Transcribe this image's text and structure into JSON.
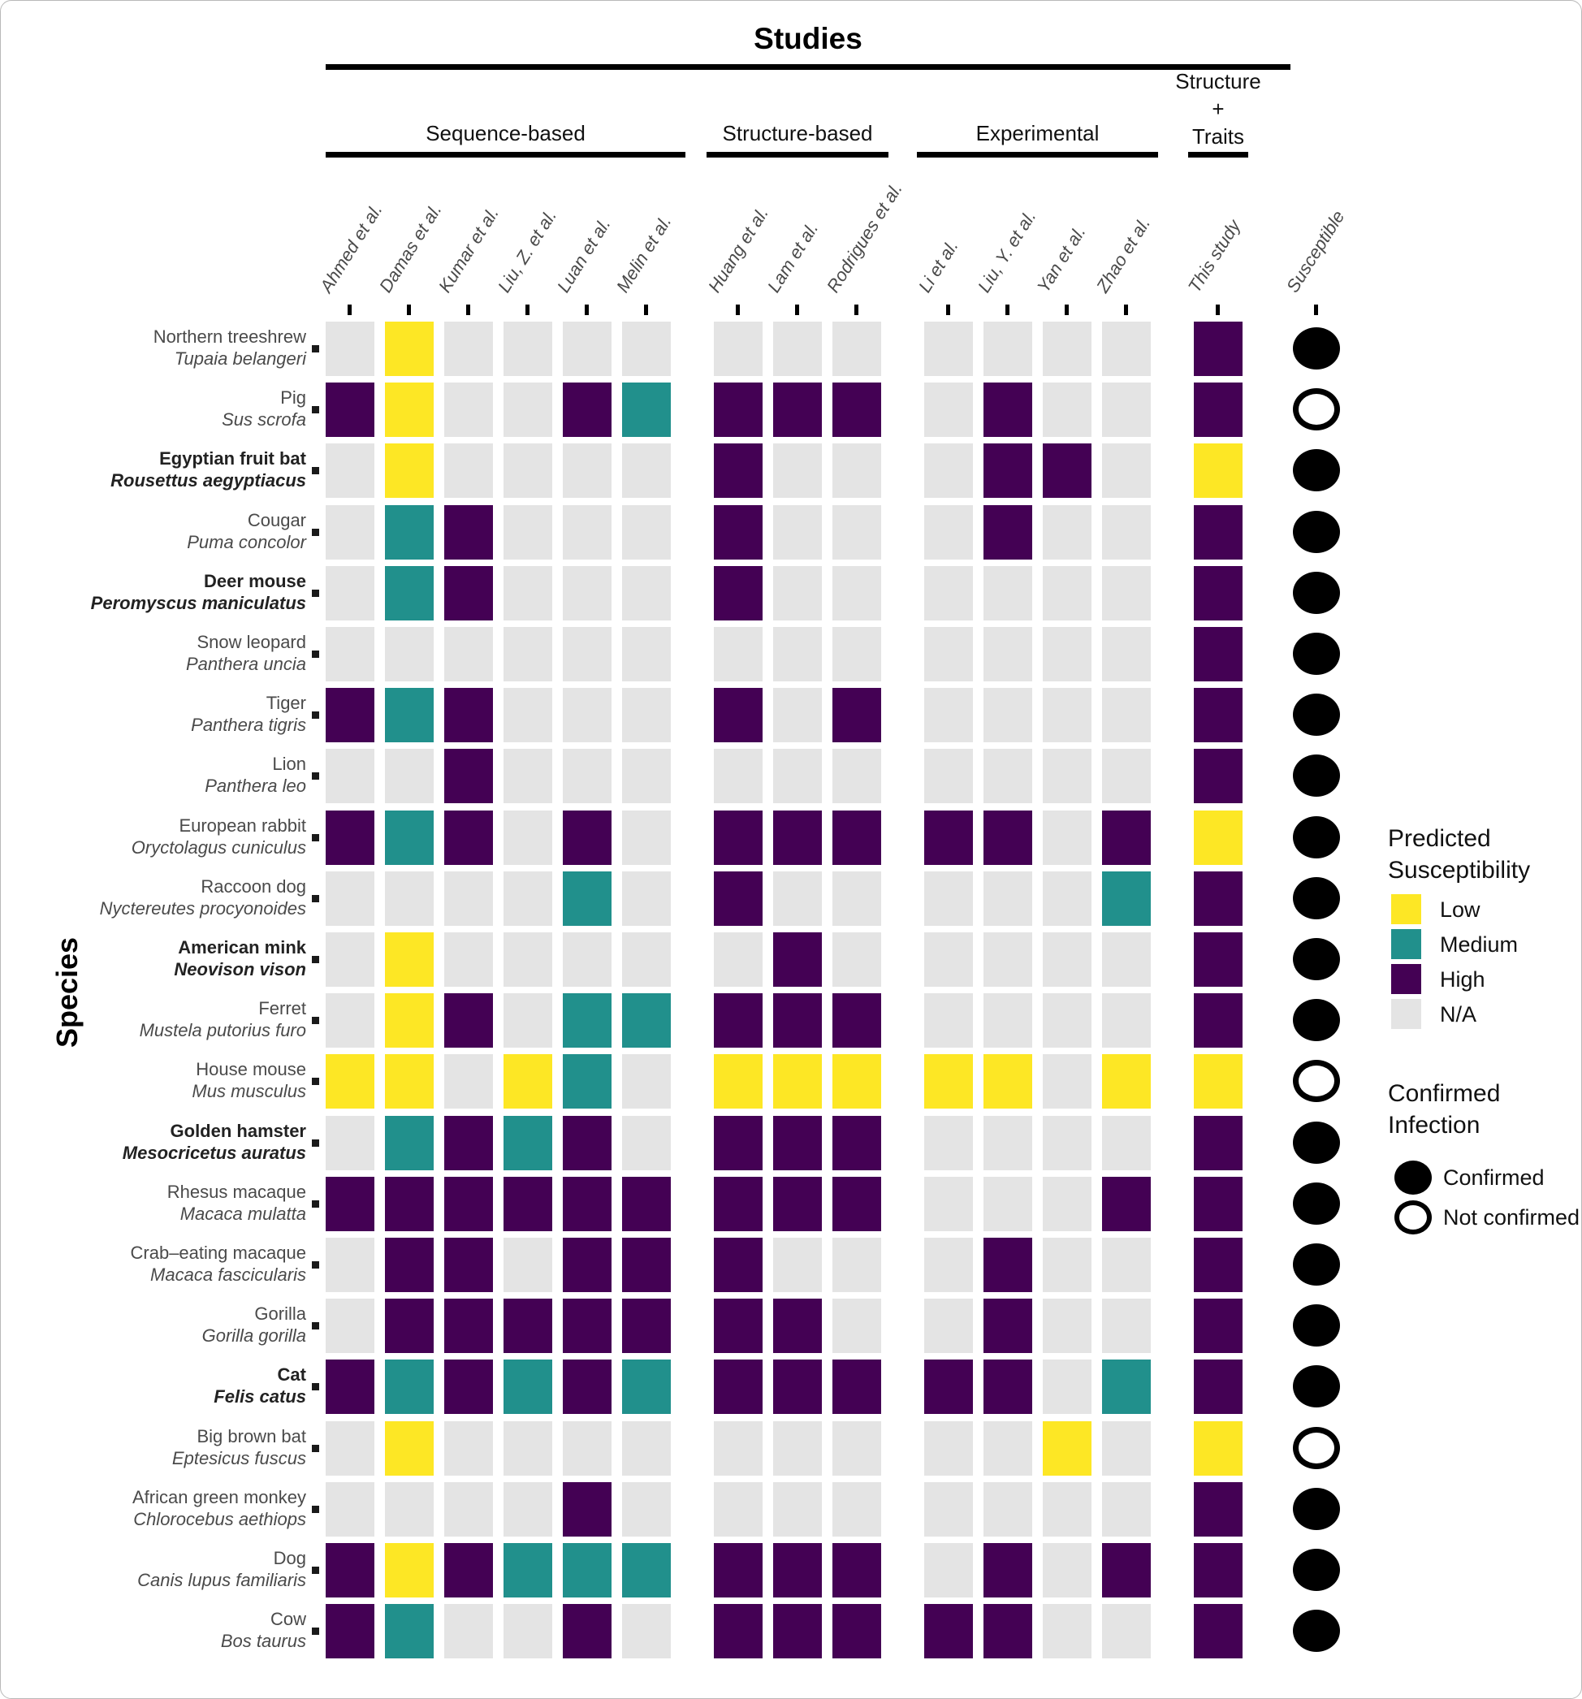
{
  "title": "Studies",
  "y_axis_label": "Species",
  "susceptible_column_label": "Susceptible",
  "colors": {
    "low": "#FDE725",
    "medium": "#21908C",
    "high": "#440154",
    "na": "#E4E4E4",
    "tick": "#000000"
  },
  "column_groups": [
    {
      "label": "Sequence-based",
      "columns": [
        "Ahmed et al.",
        "Damas et al.",
        "Kumar et al.",
        "Liu, Z. et al.",
        "Luan et al.",
        "Melin et al."
      ]
    },
    {
      "label": "Structure-based",
      "columns": [
        "Huang et al.",
        "Lam et al.",
        "Rodrigues et al."
      ]
    },
    {
      "label": "Experimental",
      "columns": [
        "Li et al.",
        "Liu, Y. et al.",
        "Yan et al.",
        "Zhao et al."
      ]
    },
    {
      "label": "Structure + Traits",
      "label_lines": [
        "Structure",
        "+",
        "Traits"
      ],
      "columns": [
        "This study"
      ]
    }
  ],
  "legend": {
    "predicted": {
      "title_line1": "Predicted",
      "title_line2": "Susceptibility",
      "items": [
        {
          "key": "low",
          "label": "Low"
        },
        {
          "key": "medium",
          "label": "Medium"
        },
        {
          "key": "high",
          "label": "High"
        },
        {
          "key": "na",
          "label": "N/A"
        }
      ]
    },
    "confirmed": {
      "title_line1": "Confirmed",
      "title_line2": "Infection",
      "items": [
        {
          "style": "filled",
          "label": "Confirmed"
        },
        {
          "style": "open",
          "label": "Not confirmed"
        }
      ]
    }
  },
  "chart_data": {
    "type": "heatmap",
    "value_codes": {
      "L": "Low",
      "M": "Medium",
      "H": "High",
      "N": "N/A"
    },
    "columns": [
      "Ahmed et al.",
      "Damas et al.",
      "Kumar et al.",
      "Liu, Z. et al.",
      "Luan et al.",
      "Melin et al.",
      "Huang et al.",
      "Lam et al.",
      "Rodrigues et al.",
      "Li et al.",
      "Liu, Y. et al.",
      "Yan et al.",
      "Zhao et al.",
      "This study"
    ],
    "rows": [
      {
        "common": "Northern treeshrew",
        "scientific": "Tupaia belangeri",
        "bold": false,
        "values": [
          "N",
          "L",
          "N",
          "N",
          "N",
          "N",
          "N",
          "N",
          "N",
          "N",
          "N",
          "N",
          "N",
          "H"
        ],
        "confirmed": true
      },
      {
        "common": "Pig",
        "scientific": "Sus scrofa",
        "bold": false,
        "values": [
          "H",
          "L",
          "N",
          "N",
          "H",
          "M",
          "H",
          "H",
          "H",
          "N",
          "H",
          "N",
          "N",
          "H"
        ],
        "confirmed": false
      },
      {
        "common": "Egyptian fruit bat",
        "scientific": "Rousettus aegyptiacus",
        "bold": true,
        "values": [
          "N",
          "L",
          "N",
          "N",
          "N",
          "N",
          "H",
          "N",
          "N",
          "N",
          "H",
          "H",
          "N",
          "L"
        ],
        "confirmed": true
      },
      {
        "common": "Cougar",
        "scientific": "Puma concolor",
        "bold": false,
        "values": [
          "N",
          "M",
          "H",
          "N",
          "N",
          "N",
          "H",
          "N",
          "N",
          "N",
          "H",
          "N",
          "N",
          "H"
        ],
        "confirmed": true
      },
      {
        "common": "Deer mouse",
        "scientific": "Peromyscus maniculatus",
        "bold": true,
        "values": [
          "N",
          "M",
          "H",
          "N",
          "N",
          "N",
          "H",
          "N",
          "N",
          "N",
          "N",
          "N",
          "N",
          "H"
        ],
        "confirmed": true
      },
      {
        "common": "Snow leopard",
        "scientific": "Panthera uncia",
        "bold": false,
        "values": [
          "N",
          "N",
          "N",
          "N",
          "N",
          "N",
          "N",
          "N",
          "N",
          "N",
          "N",
          "N",
          "N",
          "H"
        ],
        "confirmed": true
      },
      {
        "common": "Tiger",
        "scientific": "Panthera tigris",
        "bold": false,
        "values": [
          "H",
          "M",
          "H",
          "N",
          "N",
          "N",
          "H",
          "N",
          "H",
          "N",
          "N",
          "N",
          "N",
          "H"
        ],
        "confirmed": true
      },
      {
        "common": "Lion",
        "scientific": "Panthera leo",
        "bold": false,
        "values": [
          "N",
          "N",
          "H",
          "N",
          "N",
          "N",
          "N",
          "N",
          "N",
          "N",
          "N",
          "N",
          "N",
          "H"
        ],
        "confirmed": true
      },
      {
        "common": "European rabbit",
        "scientific": "Oryctolagus cuniculus",
        "bold": false,
        "values": [
          "H",
          "M",
          "H",
          "N",
          "H",
          "N",
          "H",
          "H",
          "H",
          "H",
          "H",
          "N",
          "H",
          "L"
        ],
        "confirmed": true
      },
      {
        "common": "Raccoon dog",
        "scientific": "Nyctereutes procyonoides",
        "bold": false,
        "values": [
          "N",
          "N",
          "N",
          "N",
          "M",
          "N",
          "H",
          "N",
          "N",
          "N",
          "N",
          "N",
          "M",
          "H"
        ],
        "confirmed": true
      },
      {
        "common": "American mink",
        "scientific": "Neovison vison",
        "bold": true,
        "values": [
          "N",
          "L",
          "N",
          "N",
          "N",
          "N",
          "N",
          "H",
          "N",
          "N",
          "N",
          "N",
          "N",
          "H"
        ],
        "confirmed": true
      },
      {
        "common": "Ferret",
        "scientific": "Mustela putorius furo",
        "bold": false,
        "values": [
          "N",
          "L",
          "H",
          "N",
          "M",
          "M",
          "H",
          "H",
          "H",
          "N",
          "N",
          "N",
          "N",
          "H"
        ],
        "confirmed": true
      },
      {
        "common": "House mouse",
        "scientific": "Mus musculus",
        "bold": false,
        "values": [
          "L",
          "L",
          "N",
          "L",
          "M",
          "N",
          "L",
          "L",
          "L",
          "L",
          "L",
          "N",
          "L",
          "L"
        ],
        "confirmed": false
      },
      {
        "common": "Golden hamster",
        "scientific": "Mesocricetus auratus",
        "bold": true,
        "values": [
          "N",
          "M",
          "H",
          "M",
          "H",
          "N",
          "H",
          "H",
          "H",
          "N",
          "N",
          "N",
          "N",
          "H"
        ],
        "confirmed": true
      },
      {
        "common": "Rhesus macaque",
        "scientific": "Macaca mulatta",
        "bold": false,
        "values": [
          "H",
          "H",
          "H",
          "H",
          "H",
          "H",
          "H",
          "H",
          "H",
          "N",
          "N",
          "N",
          "H",
          "H"
        ],
        "confirmed": true
      },
      {
        "common": "Crab–eating macaque",
        "scientific": "Macaca fascicularis",
        "bold": false,
        "values": [
          "N",
          "H",
          "H",
          "N",
          "H",
          "H",
          "H",
          "N",
          "N",
          "N",
          "H",
          "N",
          "N",
          "H"
        ],
        "confirmed": true
      },
      {
        "common": "Gorilla",
        "scientific": "Gorilla gorilla",
        "bold": false,
        "values": [
          "N",
          "H",
          "H",
          "H",
          "H",
          "H",
          "H",
          "H",
          "N",
          "N",
          "H",
          "N",
          "N",
          "H"
        ],
        "confirmed": true
      },
      {
        "common": "Cat",
        "scientific": "Felis catus",
        "bold": true,
        "values": [
          "H",
          "M",
          "H",
          "M",
          "H",
          "M",
          "H",
          "H",
          "H",
          "H",
          "H",
          "N",
          "M",
          "H"
        ],
        "confirmed": true
      },
      {
        "common": "Big brown bat",
        "scientific": "Eptesicus fuscus",
        "bold": false,
        "values": [
          "N",
          "L",
          "N",
          "N",
          "N",
          "N",
          "N",
          "N",
          "N",
          "N",
          "N",
          "L",
          "N",
          "L"
        ],
        "confirmed": false
      },
      {
        "common": "African green monkey",
        "scientific": "Chlorocebus aethiops",
        "bold": false,
        "values": [
          "N",
          "N",
          "N",
          "N",
          "H",
          "N",
          "N",
          "N",
          "N",
          "N",
          "N",
          "N",
          "N",
          "H"
        ],
        "confirmed": true
      },
      {
        "common": "Dog",
        "scientific": "Canis lupus familiaris",
        "bold": false,
        "values": [
          "H",
          "L",
          "H",
          "M",
          "M",
          "M",
          "H",
          "H",
          "H",
          "N",
          "H",
          "N",
          "H",
          "H"
        ],
        "confirmed": true
      },
      {
        "common": "Cow",
        "scientific": "Bos taurus",
        "bold": false,
        "values": [
          "H",
          "M",
          "N",
          "N",
          "H",
          "N",
          "H",
          "H",
          "H",
          "H",
          "H",
          "N",
          "N",
          "H"
        ],
        "confirmed": true
      }
    ]
  }
}
